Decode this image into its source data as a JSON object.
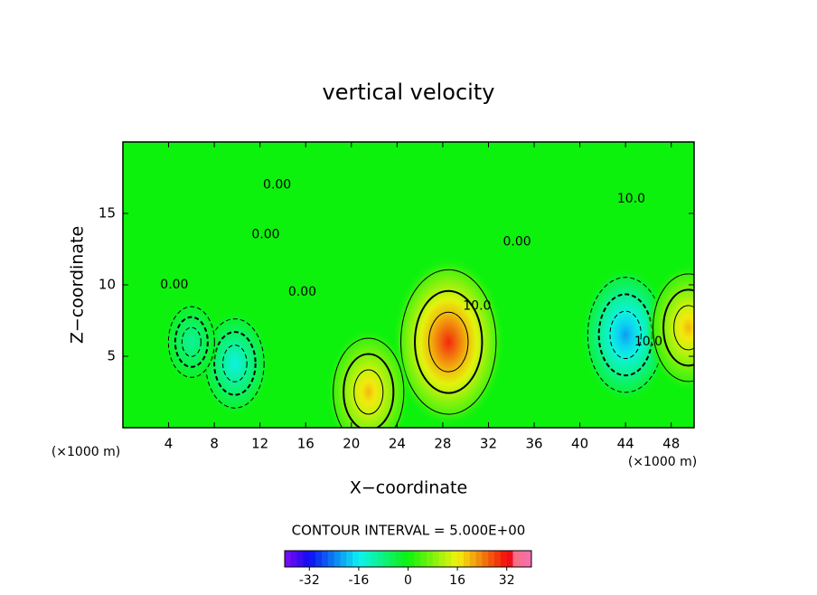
{
  "chart_data": {
    "type": "contour",
    "title": "vertical velocity",
    "x_label": "X−coordinate",
    "y_label": "Z−coordinate",
    "x_unit_label": "(×1000 m)",
    "contour_interval": "CONTOUR INTERVAL = 5.000E+00",
    "xlim": [
      0,
      50
    ],
    "xticks": [
      4,
      8,
      12,
      16,
      20,
      24,
      28,
      32,
      36,
      40,
      44,
      48
    ],
    "ylim": [
      0,
      20
    ],
    "yticks": [
      5,
      10,
      15
    ],
    "clim": [
      -40,
      40
    ],
    "cticks": [
      -32,
      -16,
      0,
      16,
      32
    ],
    "centers": {
      "x": [
        28.5,
        21.5,
        9.8,
        6,
        44,
        49.5
      ],
      "z": [
        6,
        2.5,
        4.5,
        6,
        6.5,
        7
      ],
      "values": [
        30,
        20,
        -15,
        -10,
        -22,
        20
      ]
    },
    "contour_labels": [
      {
        "text": "0.00",
        "x": 15.7,
        "z": 9.5
      },
      {
        "text": "0.00",
        "x": 4.5,
        "z": 10
      },
      {
        "text": "0.00",
        "x": 12.5,
        "z": 13.5
      },
      {
        "text": "0.00",
        "x": 13.5,
        "z": 17
      },
      {
        "text": "0.00",
        "x": 34.5,
        "z": 13
      },
      {
        "text": "10.0",
        "x": 31,
        "z": 8.5
      },
      {
        "text": "10.0",
        "x": 46,
        "z": 6
      },
      {
        "text": "10.0",
        "x": 44.5,
        "z": 16
      }
    ]
  }
}
